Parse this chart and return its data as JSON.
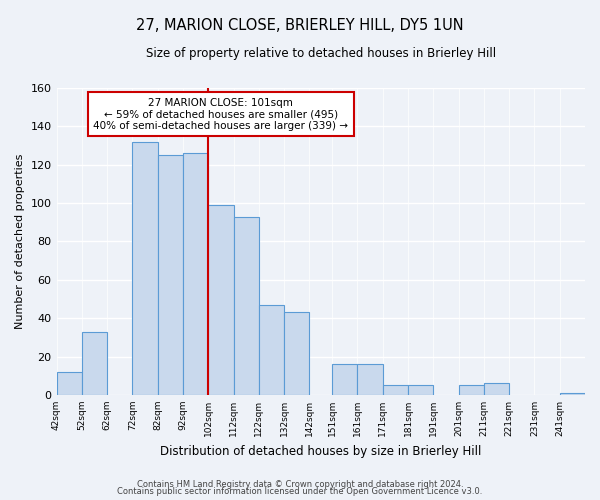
{
  "title": "27, MARION CLOSE, BRIERLEY HILL, DY5 1UN",
  "subtitle": "Size of property relative to detached houses in Brierley Hill",
  "xlabel": "Distribution of detached houses by size in Brierley Hill",
  "ylabel": "Number of detached properties",
  "bar_edges": [
    42,
    52,
    62,
    72,
    82,
    92,
    102,
    112,
    122,
    132,
    142,
    151,
    161,
    171,
    181,
    191,
    201,
    211,
    221,
    231,
    241
  ],
  "bar_heights": [
    12,
    33,
    0,
    132,
    125,
    126,
    99,
    93,
    47,
    43,
    0,
    16,
    16,
    5,
    5,
    0,
    5,
    6,
    0,
    0,
    1
  ],
  "bar_color": "#c9d9ed",
  "bar_edge_color": "#5b9bd5",
  "vline_x": 102,
  "vline_color": "#cc0000",
  "ylim": [
    0,
    160
  ],
  "xlim": [
    42,
    251
  ],
  "annotation_title": "27 MARION CLOSE: 101sqm",
  "annotation_line1": "← 59% of detached houses are smaller (495)",
  "annotation_line2": "40% of semi-detached houses are larger (339) →",
  "annotation_box_edge": "#cc0000",
  "yticks": [
    0,
    20,
    40,
    60,
    80,
    100,
    120,
    140,
    160
  ],
  "footer1": "Contains HM Land Registry data © Crown copyright and database right 2024.",
  "footer2": "Contains public sector information licensed under the Open Government Licence v3.0.",
  "tick_labels": [
    "42sqm",
    "52sqm",
    "62sqm",
    "72sqm",
    "82sqm",
    "92sqm",
    "102sqm",
    "112sqm",
    "122sqm",
    "132sqm",
    "142sqm",
    "151sqm",
    "161sqm",
    "171sqm",
    "181sqm",
    "191sqm",
    "201sqm",
    "211sqm",
    "221sqm",
    "231sqm",
    "241sqm"
  ],
  "background_color": "#eef2f8"
}
